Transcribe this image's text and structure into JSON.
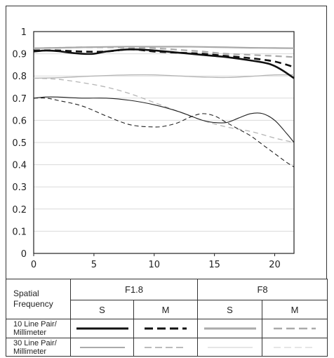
{
  "chart_data": {
    "type": "line",
    "xlim": [
      0,
      21.6
    ],
    "ylim": [
      0,
      1
    ],
    "xticks": [
      "0",
      "5",
      "10",
      "15",
      "20"
    ],
    "xtick_values": [
      0,
      5,
      10,
      15,
      20
    ],
    "yticks": [
      "0",
      "0.1",
      "0.2",
      "0.3",
      "0.4",
      "0.5",
      "0.6",
      "0.7",
      "0.8",
      "0.9",
      "1"
    ],
    "ytick_values": [
      0,
      0.1,
      0.2,
      0.3,
      0.4,
      0.5,
      0.6,
      0.7,
      0.8,
      0.9,
      1
    ],
    "series": [
      {
        "id": "f8_10_s",
        "aperture": "F8",
        "frequency": "10",
        "orientation": "S",
        "color": "#aaaaaa",
        "width": 2.2,
        "dash": "",
        "x": [
          0,
          2,
          4,
          6,
          8,
          10,
          12,
          14,
          16,
          18,
          20,
          21.6
        ],
        "y": [
          0.925,
          0.927,
          0.929,
          0.931,
          0.932,
          0.932,
          0.932,
          0.931,
          0.929,
          0.927,
          0.926,
          0.925
        ]
      },
      {
        "id": "f8_10_m",
        "aperture": "F8",
        "frequency": "10",
        "orientation": "M",
        "color": "#aaaaaa",
        "width": 2.2,
        "dash": "9,6",
        "x": [
          0,
          2,
          4,
          6,
          8,
          10,
          12,
          14,
          16,
          18,
          20,
          21.6
        ],
        "y": [
          0.925,
          0.927,
          0.929,
          0.929,
          0.928,
          0.925,
          0.918,
          0.91,
          0.9,
          0.895,
          0.89,
          0.885
        ]
      },
      {
        "id": "f8_30_s",
        "aperture": "F8",
        "frequency": "30",
        "orientation": "S",
        "color": "#b5b5b5",
        "width": 1.3,
        "dash": "",
        "x": [
          0,
          2,
          4,
          6,
          8,
          10,
          12,
          14,
          16,
          18,
          20,
          21.6
        ],
        "y": [
          0.79,
          0.792,
          0.797,
          0.802,
          0.805,
          0.805,
          0.8,
          0.795,
          0.793,
          0.798,
          0.805,
          0.805
        ]
      },
      {
        "id": "f8_30_m",
        "aperture": "F8",
        "frequency": "30",
        "orientation": "M",
        "color": "#b5b5b5",
        "width": 1.3,
        "dash": "7,5",
        "x": [
          0,
          2,
          4,
          6,
          8,
          10,
          12,
          14,
          16,
          18,
          20,
          21.6
        ],
        "y": [
          0.79,
          0.785,
          0.77,
          0.75,
          0.72,
          0.68,
          0.64,
          0.6,
          0.57,
          0.55,
          0.52,
          0.5
        ]
      },
      {
        "id": "f18_10_s",
        "aperture": "F1.8",
        "frequency": "10",
        "orientation": "S",
        "color": "#111111",
        "width": 2.6,
        "dash": "",
        "x": [
          0,
          1,
          2,
          3,
          4,
          5,
          6,
          8,
          10,
          12,
          14,
          16,
          18,
          19.5,
          20.5,
          21.6
        ],
        "y": [
          0.91,
          0.915,
          0.912,
          0.905,
          0.9,
          0.9,
          0.91,
          0.92,
          0.915,
          0.905,
          0.895,
          0.885,
          0.87,
          0.855,
          0.83,
          0.79
        ]
      },
      {
        "id": "f18_10_m",
        "aperture": "F1.8",
        "frequency": "10",
        "orientation": "M",
        "color": "#111111",
        "width": 2.6,
        "dash": "9,6",
        "x": [
          0,
          2,
          4,
          6,
          8,
          10,
          12,
          14,
          16,
          18,
          20,
          21.6
        ],
        "y": [
          0.915,
          0.915,
          0.91,
          0.91,
          0.92,
          0.91,
          0.905,
          0.9,
          0.89,
          0.88,
          0.865,
          0.84
        ]
      },
      {
        "id": "f18_30_s",
        "aperture": "F1.8",
        "frequency": "30",
        "orientation": "S",
        "color": "#222222",
        "width": 1.1,
        "dash": "",
        "x": [
          0,
          1,
          2,
          4,
          6,
          8,
          10,
          12,
          14,
          15,
          16,
          17,
          18,
          19,
          20,
          21,
          21.6
        ],
        "y": [
          0.7,
          0.705,
          0.705,
          0.7,
          0.7,
          0.69,
          0.67,
          0.64,
          0.6,
          0.59,
          0.59,
          0.61,
          0.63,
          0.63,
          0.6,
          0.54,
          0.5
        ]
      },
      {
        "id": "f18_30_m",
        "aperture": "F1.8",
        "frequency": "30",
        "orientation": "M",
        "color": "#222222",
        "width": 1.1,
        "dash": "6,4",
        "x": [
          0,
          1,
          2,
          4,
          6,
          8,
          10,
          11,
          12,
          13,
          14,
          15,
          16,
          17,
          18,
          19,
          20,
          21,
          21.6
        ],
        "y": [
          0.7,
          0.7,
          0.69,
          0.665,
          0.62,
          0.58,
          0.57,
          0.575,
          0.59,
          0.615,
          0.63,
          0.62,
          0.59,
          0.56,
          0.53,
          0.49,
          0.45,
          0.41,
          0.39
        ]
      }
    ]
  },
  "legend": {
    "spatial_frequency": "Spatial Frequency",
    "aperture_1": "F1.8",
    "aperture_2": "F8",
    "s": "S",
    "m": "M",
    "row_10": "10 Line Pair/ Millimeter",
    "row_30": "30 Line Pair/ Millimeter"
  }
}
